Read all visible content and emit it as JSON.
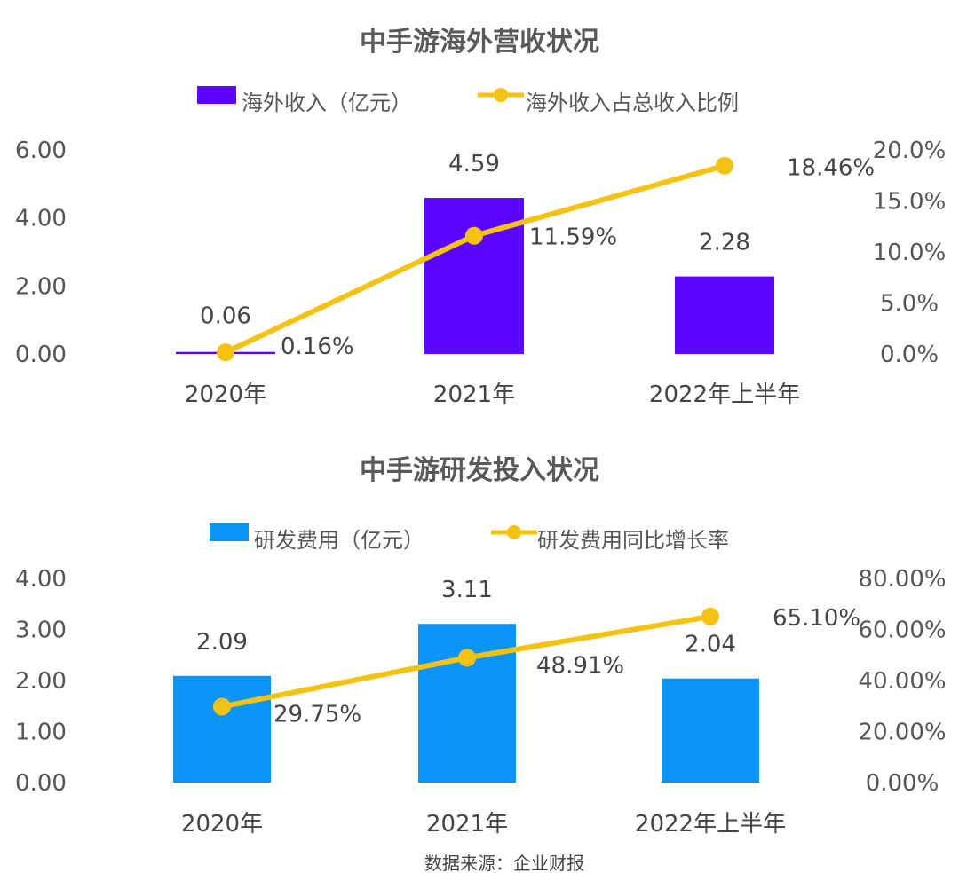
{
  "source": "数据来源：企业财报",
  "chart_data": [
    {
      "type": "bar+line",
      "title": "中手游海外营收状况",
      "categories": [
        "2020年",
        "2021年",
        "2022年上半年"
      ],
      "series": [
        {
          "name": "海外收入（亿元）",
          "kind": "bar",
          "axis": "left",
          "values": [
            0.06,
            4.59,
            2.28
          ],
          "labels": [
            "0.06",
            "4.59",
            "2.28"
          ]
        },
        {
          "name": "海外收入占总收入比例",
          "kind": "line",
          "axis": "right",
          "values": [
            0.16,
            11.59,
            18.46
          ],
          "labels": [
            "0.16%",
            "11.59%",
            "18.46%"
          ]
        }
      ],
      "left_axis": {
        "ylim": [
          0,
          6
        ],
        "ticks": [
          "0.00",
          "2.00",
          "4.00",
          "6.00"
        ]
      },
      "right_axis": {
        "ylim": [
          0,
          20
        ],
        "ticks": [
          "0.0%",
          "5.0%",
          "10.0%",
          "15.0%",
          "20.0%"
        ]
      },
      "colors": {
        "bar": "#5a06ff",
        "line": "#f5c211"
      },
      "legend": "top-center",
      "grid": false
    },
    {
      "type": "bar+line",
      "title": "中手游研发投入状况",
      "categories": [
        "2020年",
        "2021年",
        "2022年上半年"
      ],
      "series": [
        {
          "name": "研发费用（亿元）",
          "kind": "bar",
          "axis": "left",
          "values": [
            2.09,
            3.11,
            2.04
          ],
          "labels": [
            "2.09",
            "3.11",
            "2.04"
          ]
        },
        {
          "name": "研发费用同比增长率",
          "kind": "line",
          "axis": "right",
          "values": [
            29.75,
            48.91,
            65.1
          ],
          "labels": [
            "29.75%",
            "48.91%",
            "65.10%"
          ]
        }
      ],
      "left_axis": {
        "ylim": [
          0,
          4
        ],
        "ticks": [
          "0.00",
          "1.00",
          "2.00",
          "3.00",
          "4.00"
        ]
      },
      "right_axis": {
        "ylim": [
          0,
          80
        ],
        "ticks": [
          "0.00%",
          "20.00%",
          "40.00%",
          "60.00%",
          "80.00%"
        ]
      },
      "colors": {
        "bar": "#0895f5",
        "line": "#f5c211"
      },
      "legend": "top-center",
      "grid": false
    }
  ]
}
